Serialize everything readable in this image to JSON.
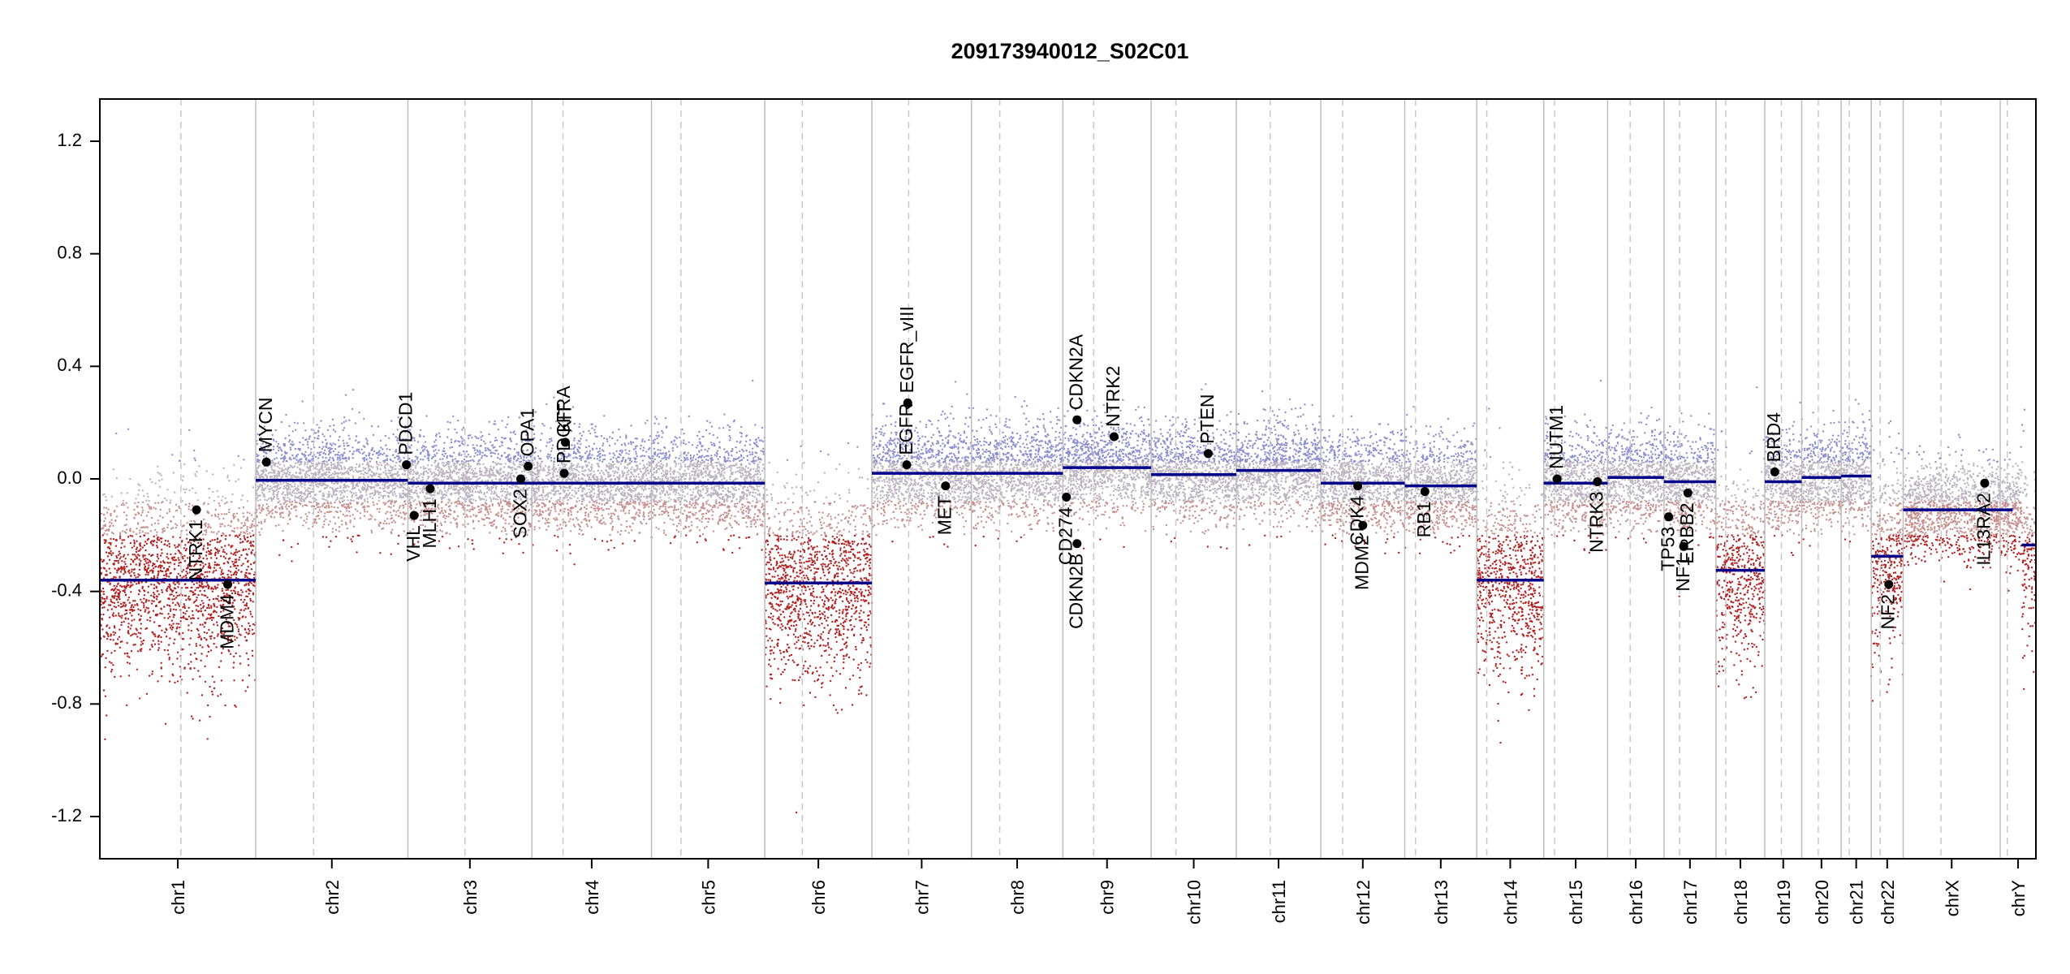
{
  "chart_data": {
    "type": "scatter",
    "title": "209173940012_S02C01",
    "xlabel": "",
    "ylabel": "",
    "ylim": [
      -1.35,
      1.35
    ],
    "y_ticks": [
      -1.2,
      -0.8,
      -0.4,
      0.0,
      0.4,
      0.8,
      1.2
    ],
    "y_tick_labels": [
      "-1.2",
      "-0.8",
      "-0.4",
      "0.0",
      "0.4",
      "0.8",
      "1.2"
    ],
    "grid": false,
    "colors": {
      "segment": "#00008b",
      "loss_points": "#b22222",
      "gain_points": "#8f8fd0",
      "neutral_points": "#bdbdbd",
      "boundary": "#bdbdbd",
      "gene_point": "#000000"
    },
    "chromosomes": [
      {
        "name": "chr1",
        "length": 249,
        "centromere": 0.52,
        "segments": [
          {
            "start": 0,
            "end": 1,
            "value": -0.36
          }
        ]
      },
      {
        "name": "chr2",
        "length": 243,
        "centromere": 0.38,
        "segments": [
          {
            "start": 0,
            "end": 1,
            "value": -0.005
          }
        ]
      },
      {
        "name": "chr3",
        "length": 198,
        "centromere": 0.46,
        "segments": [
          {
            "start": 0,
            "end": 1,
            "value": -0.015
          }
        ]
      },
      {
        "name": "chr4",
        "length": 191,
        "centromere": 0.26,
        "segments": [
          {
            "start": 0,
            "end": 1,
            "value": -0.015
          }
        ]
      },
      {
        "name": "chr5",
        "length": 181,
        "centromere": 0.26,
        "segments": [
          {
            "start": 0,
            "end": 1,
            "value": -0.015
          }
        ]
      },
      {
        "name": "chr6",
        "length": 171,
        "centromere": 0.35,
        "segments": [
          {
            "start": 0,
            "end": 1,
            "value": -0.37
          }
        ]
      },
      {
        "name": "chr7",
        "length": 159,
        "centromere": 0.37,
        "segments": [
          {
            "start": 0,
            "end": 1,
            "value": 0.02
          }
        ]
      },
      {
        "name": "chr8",
        "length": 146,
        "centromere": 0.31,
        "segments": [
          {
            "start": 0,
            "end": 1,
            "value": 0.02
          }
        ]
      },
      {
        "name": "chr9",
        "length": 141,
        "centromere": 0.35,
        "segments": [
          {
            "start": 0,
            "end": 1,
            "value": 0.04
          }
        ]
      },
      {
        "name": "chr10",
        "length": 136,
        "centromere": 0.29,
        "segments": [
          {
            "start": 0,
            "end": 1,
            "value": 0.015
          }
        ]
      },
      {
        "name": "chr11",
        "length": 135,
        "centromere": 0.4,
        "segments": [
          {
            "start": 0,
            "end": 1,
            "value": 0.03
          }
        ]
      },
      {
        "name": "chr12",
        "length": 134,
        "centromere": 0.26,
        "segments": [
          {
            "start": 0,
            "end": 1,
            "value": -0.015
          }
        ]
      },
      {
        "name": "chr13",
        "length": 115,
        "centromere": 0.15,
        "segments": [
          {
            "start": 0,
            "end": 1,
            "value": -0.025
          }
        ]
      },
      {
        "name": "chr14",
        "length": 107,
        "centromere": 0.15,
        "segments": [
          {
            "start": 0,
            "end": 1,
            "value": -0.36
          }
        ]
      },
      {
        "name": "chr15",
        "length": 102,
        "centromere": 0.17,
        "segments": [
          {
            "start": 0,
            "end": 1,
            "value": -0.015
          }
        ]
      },
      {
        "name": "chr16",
        "length": 90,
        "centromere": 0.4,
        "segments": [
          {
            "start": 0,
            "end": 1,
            "value": 0.005
          }
        ]
      },
      {
        "name": "chr17",
        "length": 83,
        "centromere": 0.3,
        "segments": [
          {
            "start": 0,
            "end": 1,
            "value": -0.01
          }
        ]
      },
      {
        "name": "chr18",
        "length": 78,
        "centromere": 0.2,
        "segments": [
          {
            "start": 0,
            "end": 1,
            "value": -0.325
          }
        ]
      },
      {
        "name": "chr19",
        "length": 59,
        "centromere": 0.45,
        "segments": [
          {
            "start": 0,
            "end": 1,
            "value": -0.01
          }
        ]
      },
      {
        "name": "chr20",
        "length": 63,
        "centromere": 0.42,
        "segments": [
          {
            "start": 0,
            "end": 1,
            "value": 0.005
          }
        ]
      },
      {
        "name": "chr21",
        "length": 48,
        "centromere": 0.27,
        "segments": [
          {
            "start": 0,
            "end": 1,
            "value": 0.01
          }
        ]
      },
      {
        "name": "chr22",
        "length": 51,
        "centromere": 0.28,
        "segments": [
          {
            "start": 0,
            "end": 1,
            "value": -0.275
          }
        ]
      },
      {
        "name": "chrX",
        "length": 155,
        "centromere": 0.39,
        "segments": [
          {
            "start": 0,
            "end": 1,
            "value": -0.11
          }
        ]
      },
      {
        "name": "chrY",
        "length": 57,
        "centromere": 0.2,
        "segments": [
          {
            "start": 0,
            "end": 0.35,
            "value": -0.11
          },
          {
            "start": 0.6,
            "end": 1,
            "value": -0.235
          }
        ]
      }
    ],
    "genes": [
      {
        "name": "NTRK1",
        "chr": "chr1",
        "pos": 0.62,
        "value": -0.11,
        "label_side": "below"
      },
      {
        "name": "MDM4",
        "chr": "chr1",
        "pos": 0.82,
        "value": -0.375,
        "label_side": "below"
      },
      {
        "name": "MYCN",
        "chr": "chr2",
        "pos": 0.07,
        "value": 0.06,
        "label_side": "above"
      },
      {
        "name": "PDCD1",
        "chr": "chr2",
        "pos": 0.99,
        "value": 0.05,
        "label_side": "above"
      },
      {
        "name": "VHL",
        "chr": "chr3",
        "pos": 0.05,
        "value": -0.13,
        "label_side": "below"
      },
      {
        "name": "MLH1",
        "chr": "chr3",
        "pos": 0.18,
        "value": -0.035,
        "label_side": "below"
      },
      {
        "name": "SOX2",
        "chr": "chr3",
        "pos": 0.91,
        "value": 0.0,
        "label_side": "below"
      },
      {
        "name": "OPA1",
        "chr": "chr3",
        "pos": 0.97,
        "value": 0.045,
        "label_side": "above"
      },
      {
        "name": "PDGFRA",
        "chr": "chr4",
        "pos": 0.27,
        "value": 0.02,
        "label_side": "above"
      },
      {
        "name": "KIT",
        "chr": "chr4",
        "pos": 0.28,
        "value": 0.13,
        "label_side": "above"
      },
      {
        "name": "EGFR",
        "chr": "chr7",
        "pos": 0.35,
        "value": 0.05,
        "label_side": "above"
      },
      {
        "name": "EGFR_vIII",
        "chr": "chr7",
        "pos": 0.36,
        "value": 0.27,
        "label_side": "above"
      },
      {
        "name": "MET",
        "chr": "chr7",
        "pos": 0.74,
        "value": -0.025,
        "label_side": "below"
      },
      {
        "name": "CD274",
        "chr": "chr9",
        "pos": 0.04,
        "value": -0.065,
        "label_side": "below"
      },
      {
        "name": "CDKN2A",
        "chr": "chr9",
        "pos": 0.16,
        "value": 0.21,
        "label_side": "above"
      },
      {
        "name": "CDKN2B",
        "chr": "chr9",
        "pos": 0.16,
        "value": -0.23,
        "label_side": "below"
      },
      {
        "name": "NTRK2",
        "chr": "chr9",
        "pos": 0.58,
        "value": 0.15,
        "label_side": "above"
      },
      {
        "name": "PTEN",
        "chr": "chr10",
        "pos": 0.67,
        "value": 0.09,
        "label_side": "above"
      },
      {
        "name": "CDK4",
        "chr": "chr12",
        "pos": 0.44,
        "value": -0.025,
        "label_side": "below"
      },
      {
        "name": "MDM2",
        "chr": "chr12",
        "pos": 0.5,
        "value": -0.165,
        "label_side": "below"
      },
      {
        "name": "RB1",
        "chr": "chr13",
        "pos": 0.28,
        "value": -0.045,
        "label_side": "below"
      },
      {
        "name": "NUTM1",
        "chr": "chr15",
        "pos": 0.21,
        "value": 0.0,
        "label_side": "above"
      },
      {
        "name": "NTRK3",
        "chr": "chr15",
        "pos": 0.84,
        "value": -0.01,
        "label_side": "below"
      },
      {
        "name": "TP53",
        "chr": "chr17",
        "pos": 0.09,
        "value": -0.135,
        "label_side": "below"
      },
      {
        "name": "NF1",
        "chr": "chr17",
        "pos": 0.38,
        "value": -0.24,
        "label_side": "below"
      },
      {
        "name": "ERBB2",
        "chr": "chr17",
        "pos": 0.46,
        "value": -0.05,
        "label_side": "below"
      },
      {
        "name": "BRD4",
        "chr": "chr19",
        "pos": 0.27,
        "value": 0.025,
        "label_side": "above"
      },
      {
        "name": "NF2",
        "chr": "chr22",
        "pos": 0.55,
        "value": -0.375,
        "label_side": "below"
      },
      {
        "name": "IL13RA2",
        "chr": "chrX",
        "pos": 0.84,
        "value": -0.015,
        "label_side": "below"
      }
    ]
  }
}
